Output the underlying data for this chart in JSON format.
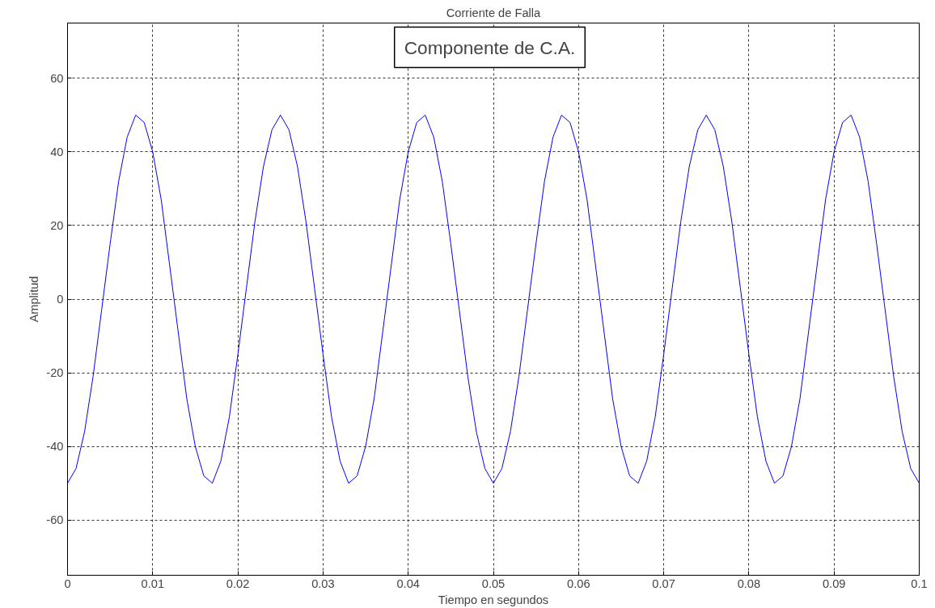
{
  "chart_data": {
    "type": "line",
    "title": "Corriente de Falla",
    "xlabel": "Tiempo en segundos",
    "ylabel": "Amplitud",
    "annotations": [
      "Componente de C.A."
    ],
    "x": [
      0,
      0.001,
      0.002,
      0.003,
      0.004,
      0.005,
      0.006,
      0.007,
      0.008,
      0.009,
      0.01,
      0.011,
      0.012,
      0.013,
      0.014,
      0.015,
      0.016,
      0.017,
      0.018,
      0.019,
      0.02,
      0.021,
      0.022,
      0.023,
      0.024,
      0.025,
      0.026,
      0.027,
      0.028,
      0.029,
      0.03,
      0.031,
      0.032,
      0.033,
      0.034,
      0.035,
      0.036,
      0.037,
      0.038,
      0.039,
      0.04,
      0.041,
      0.042,
      0.043,
      0.044,
      0.045,
      0.046,
      0.047,
      0.048,
      0.049,
      0.05,
      0.051,
      0.052,
      0.053,
      0.054,
      0.055,
      0.056,
      0.057,
      0.058,
      0.059,
      0.06,
      0.061,
      0.062,
      0.063,
      0.064,
      0.065,
      0.066,
      0.067,
      0.068,
      0.069,
      0.07,
      0.071,
      0.072,
      0.073,
      0.074,
      0.075,
      0.076,
      0.077,
      0.078,
      0.079,
      0.08,
      0.081,
      0.082,
      0.083,
      0.084,
      0.085,
      0.086,
      0.087,
      0.088,
      0.089,
      0.09,
      0.091,
      0.092,
      0.093,
      0.094,
      0.095,
      0.096,
      0.097,
      0.098,
      0.099,
      0.1
    ],
    "series": [
      {
        "color": "#0000ff",
        "values": [
          -50,
          -46,
          -36,
          -21,
          -3,
          15,
          32,
          44,
          50,
          48,
          40,
          27,
          9,
          -9,
          -27,
          -40,
          -48,
          -50,
          -44,
          -32,
          -15,
          3,
          21,
          36,
          46,
          50,
          46,
          36,
          21,
          3,
          -15,
          -32,
          -44,
          -50,
          -48,
          -40,
          -27,
          -9,
          9,
          27,
          40,
          48,
          50,
          44,
          32,
          15,
          -3,
          -21,
          -36,
          -46,
          -50,
          -46,
          -36,
          -21,
          -3,
          15,
          32,
          44,
          50,
          48,
          40,
          27,
          9,
          -9,
          -27,
          -40,
          -48,
          -50,
          -44,
          -32,
          -15,
          3,
          21,
          36,
          46,
          50,
          46,
          36,
          21,
          3,
          -15,
          -32,
          -44,
          -50,
          -48,
          -40,
          -27,
          -9,
          9,
          27,
          40,
          48,
          50,
          44,
          32,
          15,
          -3,
          -21,
          -36,
          -46,
          -50
        ]
      }
    ],
    "xlim": [
      0,
      0.1
    ],
    "xticks": [
      0,
      0.01,
      0.02,
      0.03,
      0.04,
      0.05,
      0.06,
      0.07,
      0.08,
      0.09,
      0.1
    ],
    "ylim": [
      -75,
      75
    ],
    "yticks": [
      -60,
      -40,
      -20,
      0,
      20,
      40,
      60
    ],
    "grid": true,
    "line_style": "solid"
  }
}
